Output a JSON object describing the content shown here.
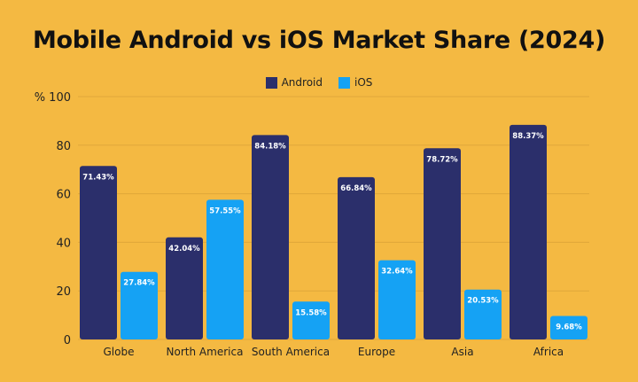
{
  "chart_data": {
    "type": "bar",
    "title": "Mobile Android vs iOS Market Share (2024)",
    "ylabel": "%",
    "ylim": [
      0,
      100
    ],
    "yticks": [
      0,
      20,
      40,
      60,
      80,
      100
    ],
    "grid": true,
    "legend_position": "top-center",
    "categories": [
      "Globe",
      "North America",
      "South America",
      "Europe",
      "Asia",
      "Africa"
    ],
    "series": [
      {
        "name": "Android",
        "color": "#2B2F6B",
        "values": [
          71.43,
          42.04,
          84.18,
          66.84,
          78.72,
          88.37
        ],
        "labels": [
          "71.43%",
          "42.04%",
          "84.18%",
          "66.84%",
          "78.72%",
          "88.37%"
        ]
      },
      {
        "name": "iOS",
        "color": "#15A2F4",
        "values": [
          27.84,
          57.55,
          15.58,
          32.64,
          20.53,
          9.68
        ],
        "labels": [
          "27.84%",
          "57.55%",
          "15.58%",
          "32.64%",
          "20.53%",
          "9.68%"
        ]
      }
    ]
  }
}
